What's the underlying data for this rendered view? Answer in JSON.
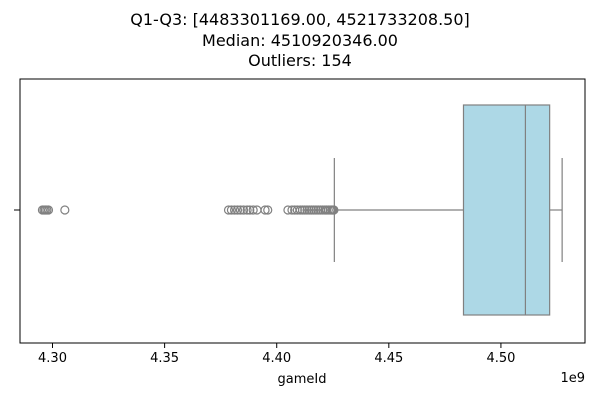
{
  "chart_data": {
    "type": "boxplot",
    "orientation": "horizontal",
    "title_lines": [
      "Q1-Q3: [4483301169.00, 4521733208.50]",
      "Median: 4510920346.00",
      "Outliers: 154"
    ],
    "xlabel": "gameId",
    "x_scale_label": "1e9",
    "xlim": [
      4.2855,
      4.5375
    ],
    "x_ticks": [
      4.3,
      4.35,
      4.4,
      4.45,
      4.5
    ],
    "x_tick_labels": [
      "4.30",
      "4.35",
      "4.40",
      "4.45",
      "4.50"
    ],
    "box": {
      "q1": 4.483301169,
      "median": 4.510920346,
      "q3": 4.5217332085,
      "whisker_low": 4.4257,
      "whisker_high": 4.5273,
      "fill": "#add8e6",
      "edge": "#808080"
    },
    "outliers": [
      4.2955,
      4.2962,
      4.2968,
      4.2975,
      4.2982,
      4.3055,
      4.3785,
      4.3798,
      4.3812,
      4.3825,
      4.3838,
      4.3852,
      4.3868,
      4.388,
      4.3895,
      4.3912,
      4.3948,
      4.396,
      4.405,
      4.4068,
      4.408,
      4.4092,
      4.4105,
      4.4115,
      4.4125,
      4.4135,
      4.4145,
      4.4155,
      4.4165,
      4.4175,
      4.4185,
      4.4195,
      4.4205,
      4.4215,
      4.4222,
      4.423,
      4.4238,
      4.4245,
      4.425,
      4.4255
    ]
  }
}
